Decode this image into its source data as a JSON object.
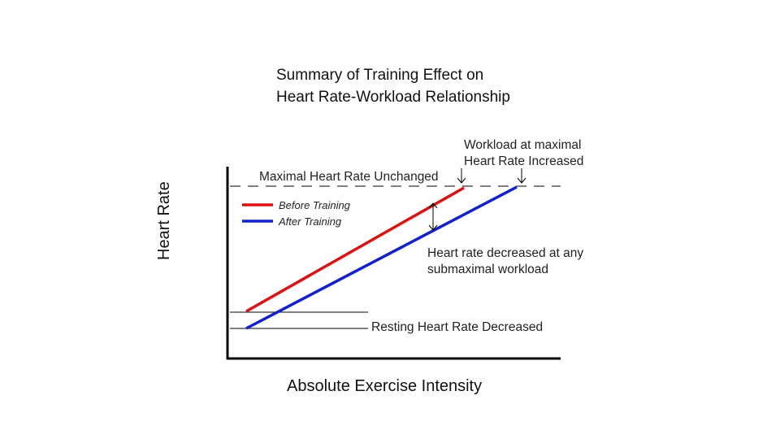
{
  "title": {
    "line1": "Summary of Training Effect on",
    "line2": "Heart Rate-Workload Relationship"
  },
  "axes": {
    "ylabel": "Heart Rate",
    "xlabel": "Absolute Exercise Intensity"
  },
  "legend": [
    {
      "label": "Before Training",
      "color": "#dd1111"
    },
    {
      "label": "After Training",
      "color": "#1122cc"
    }
  ],
  "annotations": {
    "max_hr": "Maximal Heart Rate Unchanged",
    "workload_line1": "Workload at maximal",
    "workload_line2": "Heart Rate Increased",
    "submax_line1": "Heart rate decreased at any",
    "submax_line2": "submaximal workload",
    "resting": "Resting Heart Rate Decreased"
  },
  "colors": {
    "before": "#dd1111",
    "after": "#1122cc",
    "axis": "#000000",
    "dash": "#000000"
  }
}
